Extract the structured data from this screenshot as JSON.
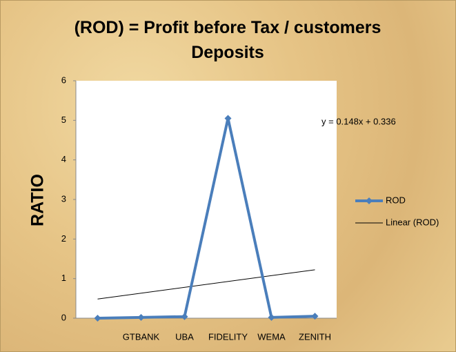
{
  "chart_data": {
    "type": "line",
    "title": "(ROD) = Profit before Tax / customers Deposits",
    "y_label": "RATIO",
    "categories": [
      null,
      "GTBANK",
      "UBA",
      "FIDELITY",
      "WEMA",
      "ZENITH"
    ],
    "series": [
      {
        "name": "ROD",
        "color": "#4a7ebb",
        "values": [
          0.0,
          0.02,
          0.04,
          5.05,
          0.02,
          0.05
        ]
      }
    ],
    "trendline": {
      "name": "Linear (ROD)",
      "label": "y = 0.148x + 0.336",
      "slope": 0.148,
      "intercept": 0.336,
      "color": "#000000"
    },
    "ylim": [
      0,
      6
    ],
    "yticks": [
      0,
      1,
      2,
      3,
      4,
      5,
      6
    ],
    "legend": "right"
  }
}
